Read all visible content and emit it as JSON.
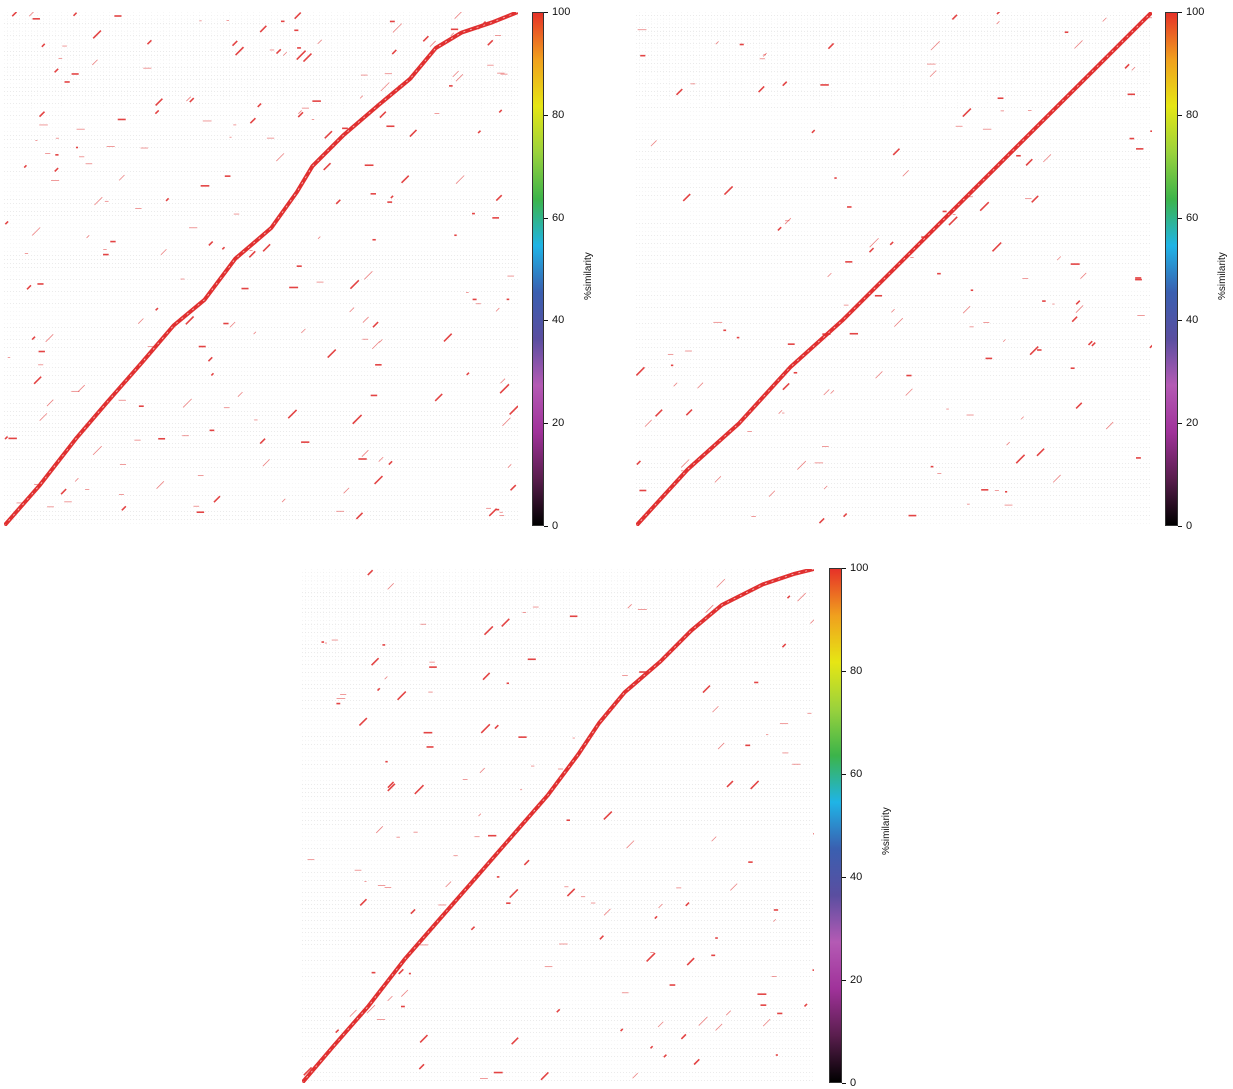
{
  "chart_data": [
    {
      "type": "dotplot",
      "colorbar": {
        "label": "%similarity",
        "ticks": [
          0,
          20,
          40,
          60,
          80,
          100
        ],
        "range": [
          0,
          100
        ],
        "colors": [
          "#000000",
          "#5a1e4e",
          "#a0329a",
          "#b45ab4",
          "#5a4ea0",
          "#3a5fb0",
          "#1fb4e6",
          "#3cb44a",
          "#9ad23c",
          "#e6e614",
          "#f0a01e",
          "#e63228"
        ]
      },
      "diagonal": [
        [
          0,
          0
        ],
        [
          0.07,
          0.08
        ],
        [
          0.14,
          0.17
        ],
        [
          0.2,
          0.24
        ],
        [
          0.27,
          0.32
        ],
        [
          0.33,
          0.39
        ],
        [
          0.39,
          0.44
        ],
        [
          0.45,
          0.52
        ],
        [
          0.52,
          0.58
        ],
        [
          0.57,
          0.65
        ],
        [
          0.6,
          0.7
        ],
        [
          0.66,
          0.76
        ],
        [
          0.73,
          0.82
        ],
        [
          0.79,
          0.87
        ],
        [
          0.84,
          0.93
        ],
        [
          0.89,
          0.96
        ],
        [
          0.95,
          0.98
        ],
        [
          1.0,
          1.0
        ]
      ],
      "diagonal_color": "#e03030"
    },
    {
      "type": "dotplot",
      "colorbar": {
        "label": "%similarity",
        "ticks": [
          0,
          20,
          40,
          60,
          80,
          100
        ],
        "range": [
          0,
          100
        ],
        "colors": [
          "#000000",
          "#5a1e4e",
          "#a0329a",
          "#b45ab4",
          "#5a4ea0",
          "#3a5fb0",
          "#1fb4e6",
          "#3cb44a",
          "#9ad23c",
          "#e6e614",
          "#f0a01e",
          "#e63228"
        ]
      },
      "diagonal": [
        [
          0,
          0
        ],
        [
          0.1,
          0.11
        ],
        [
          0.2,
          0.2
        ],
        [
          0.3,
          0.31
        ],
        [
          0.4,
          0.4
        ],
        [
          0.5,
          0.5
        ],
        [
          0.6,
          0.6
        ],
        [
          0.7,
          0.7
        ],
        [
          0.8,
          0.8
        ],
        [
          0.9,
          0.9
        ],
        [
          1.0,
          1.0
        ]
      ],
      "diagonal_color": "#e03030"
    },
    {
      "type": "dotplot",
      "colorbar": {
        "label": "%similarity",
        "ticks": [
          0,
          20,
          40,
          60,
          80,
          100
        ],
        "range": [
          0,
          100
        ],
        "colors": [
          "#000000",
          "#5a1e4e",
          "#a0329a",
          "#b45ab4",
          "#5a4ea0",
          "#3a5fb0",
          "#1fb4e6",
          "#3cb44a",
          "#9ad23c",
          "#e6e614",
          "#f0a01e",
          "#e63228"
        ]
      },
      "diagonal": [
        [
          0,
          0
        ],
        [
          0.06,
          0.07
        ],
        [
          0.13,
          0.15
        ],
        [
          0.2,
          0.24
        ],
        [
          0.27,
          0.32
        ],
        [
          0.34,
          0.4
        ],
        [
          0.41,
          0.48
        ],
        [
          0.48,
          0.56
        ],
        [
          0.54,
          0.64
        ],
        [
          0.58,
          0.7
        ],
        [
          0.63,
          0.76
        ],
        [
          0.7,
          0.82
        ],
        [
          0.76,
          0.88
        ],
        [
          0.82,
          0.93
        ],
        [
          0.9,
          0.97
        ],
        [
          0.96,
          0.99
        ],
        [
          1.0,
          1.0
        ]
      ],
      "diagonal_color": "#e03030"
    }
  ]
}
